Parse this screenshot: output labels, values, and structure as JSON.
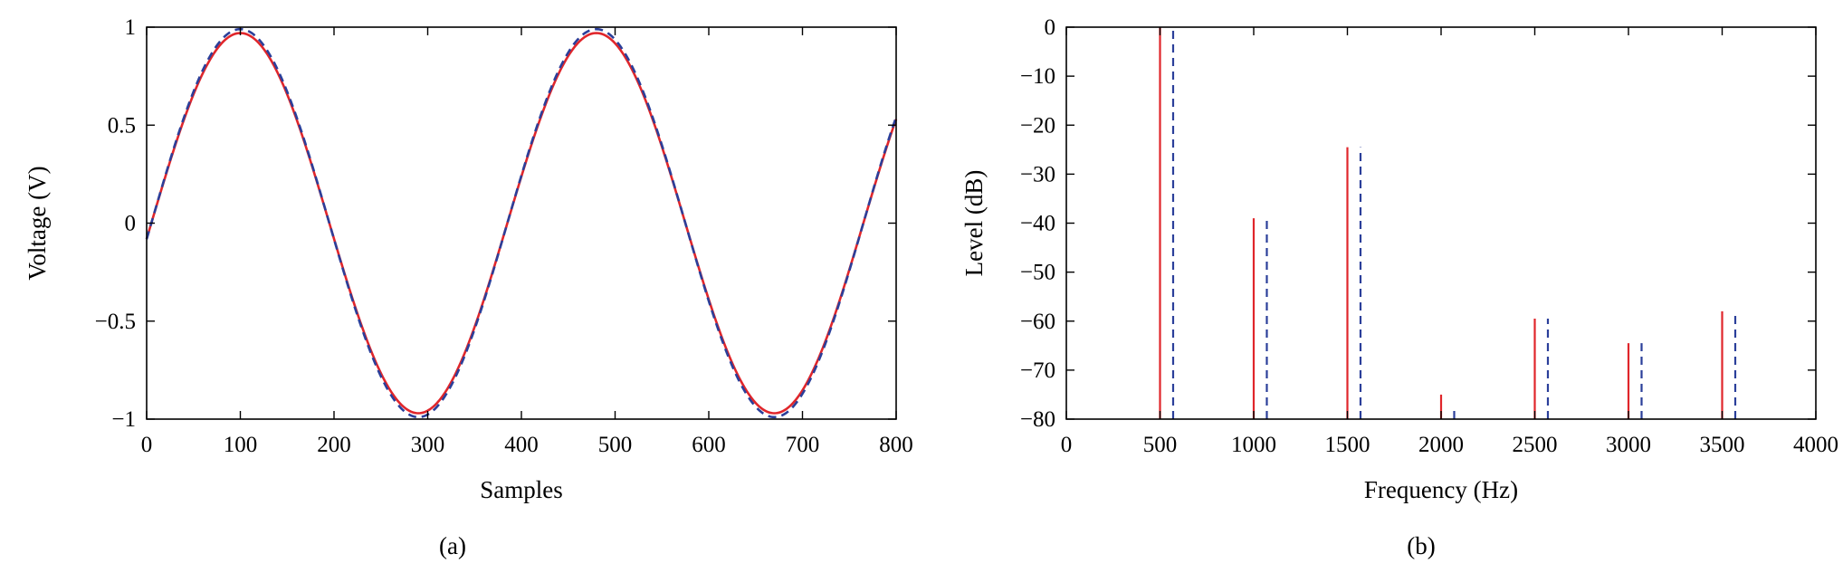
{
  "colors": {
    "series_solid": "#e0262b",
    "series_dashed": "#2b3f9a",
    "axis": "#000000"
  },
  "chart_data": [
    {
      "type": "line",
      "panel_label": "(a)",
      "xlabel": "Samples",
      "ylabel": "Voltage (V)",
      "xlim": [
        0,
        800
      ],
      "ylim": [
        -1,
        1
      ],
      "xticks": [
        0,
        100,
        200,
        300,
        400,
        500,
        600,
        700,
        800
      ],
      "xtick_labels": [
        "0",
        "100",
        "200",
        "300",
        "400",
        "500",
        "600",
        "700",
        "800"
      ],
      "yticks": [
        -1,
        -0.5,
        0,
        0.5,
        1
      ],
      "ytick_labels": [
        "−1",
        "−0.5",
        "0",
        "0.5",
        "1"
      ],
      "grid": false,
      "series": [
        {
          "style": "solid",
          "color": "#e0262b",
          "amplitude": 0.97,
          "period_samples": 380,
          "phase_start_sample": 5,
          "x_range": [
            0,
            800
          ]
        },
        {
          "style": "dashed",
          "color": "#2b3f9a",
          "amplitude": 0.99,
          "period_samples": 380,
          "phase_start_sample": 5,
          "x_range": [
            0,
            800
          ]
        }
      ]
    },
    {
      "type": "bar",
      "panel_label": "(b)",
      "xlabel": "Frequency (Hz)",
      "ylabel": "Level (dB)",
      "xlim": [
        0,
        4000
      ],
      "ylim": [
        -80,
        0
      ],
      "xticks": [
        0,
        500,
        1000,
        1500,
        2000,
        2500,
        3000,
        3500,
        4000
      ],
      "xtick_labels": [
        "0",
        "500",
        "1000",
        "1500",
        "2000",
        "2500",
        "3000",
        "3500",
        "4000"
      ],
      "yticks": [
        0,
        -10,
        -20,
        -30,
        -40,
        -50,
        -60,
        -70,
        -80
      ],
      "ytick_labels": [
        "0",
        "−10",
        "−20",
        "−30",
        "−40",
        "−50",
        "−60",
        "−70",
        "−80"
      ],
      "grid": false,
      "series": [
        {
          "style": "solid",
          "color": "#e0262b",
          "x": [
            500,
            1000,
            1500,
            2000,
            2500,
            3000,
            3500
          ],
          "values": [
            0,
            -39,
            -24.5,
            -75,
            -59.5,
            -64.5,
            -58
          ]
        },
        {
          "style": "dashed",
          "color": "#2b3f9a",
          "x": [
            570,
            1070,
            1570,
            2070,
            2570,
            3070,
            3570
          ],
          "values": [
            0,
            -39,
            -24.5,
            -77.5,
            -59.5,
            -64.5,
            -58.5
          ]
        }
      ]
    }
  ]
}
